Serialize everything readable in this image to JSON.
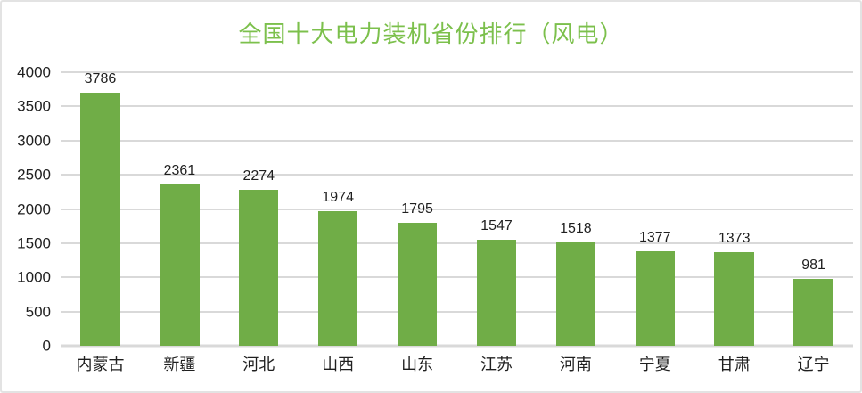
{
  "chart_data": {
    "type": "bar",
    "title": "全国十大电力装机省份排行（风电）",
    "categories": [
      "内蒙古",
      "新疆",
      "河北",
      "山西",
      "山东",
      "江苏",
      "河南",
      "宁夏",
      "甘肃",
      "辽宁"
    ],
    "values": [
      3786,
      2361,
      2274,
      1974,
      1795,
      1547,
      1518,
      1377,
      1373,
      981
    ],
    "xlabel": "",
    "ylabel": "",
    "ylim": [
      0,
      4000
    ],
    "yticks": [
      0,
      500,
      1000,
      1500,
      2000,
      2500,
      3000,
      3500,
      4000
    ],
    "grid": true,
    "legend": "none",
    "data_labels": true,
    "colors": {
      "bar": "#70ad47",
      "title": "#7cc04c",
      "gridline": "#d9d9d9",
      "axis_text": "#1f1f1f",
      "background": "#ffffff",
      "card_border": "#e3e3e3"
    }
  }
}
